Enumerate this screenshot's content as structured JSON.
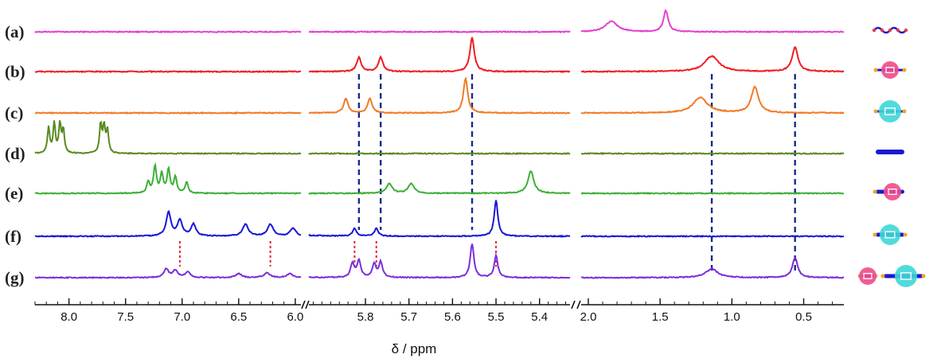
{
  "chart_data": {
    "type": "line",
    "title": "",
    "xlabel": "δ / ppm",
    "ylabel": "",
    "x_reversed": true,
    "grid": false,
    "axis_segments": [
      {
        "range": [
          8.3,
          5.95
        ],
        "ticks": [
          "8.0",
          "7.5",
          "7.0",
          "6.5",
          "6.0"
        ],
        "tick_values": [
          8.0,
          7.5,
          7.0,
          6.5,
          6.0
        ]
      },
      {
        "range": [
          5.93,
          5.33
        ],
        "ticks": [
          "5.8",
          "5.7",
          "5.6",
          "5.5",
          "5.4"
        ],
        "tick_values": [
          5.8,
          5.7,
          5.6,
          5.5,
          5.4
        ]
      },
      {
        "range": [
          2.05,
          0.22
        ],
        "ticks": [
          "2.0",
          "1.5",
          "1.0",
          "0.5"
        ],
        "tick_values": [
          2.0,
          1.5,
          1.0,
          0.5
        ]
      }
    ],
    "series": [
      {
        "label": "(a)",
        "color": "#e43fd0",
        "peaks": [
          [
            1.84,
            0.4,
            0.05
          ],
          [
            1.46,
            0.8,
            0.02
          ]
        ]
      },
      {
        "label": "(b)",
        "color": "#ee1d23",
        "peaks": [
          [
            5.815,
            0.42,
            0.006
          ],
          [
            5.765,
            0.42,
            0.006
          ],
          [
            5.555,
            1.0,
            0.006
          ],
          [
            1.14,
            0.45,
            0.06
          ],
          [
            0.56,
            0.7,
            0.025
          ]
        ]
      },
      {
        "label": "(c)",
        "color": "#f27a24",
        "peaks": [
          [
            5.845,
            0.42,
            0.006
          ],
          [
            5.79,
            0.42,
            0.006
          ],
          [
            5.57,
            1.0,
            0.006
          ],
          [
            1.22,
            0.45,
            0.06
          ],
          [
            0.84,
            0.75,
            0.03
          ]
        ]
      },
      {
        "label": "(d)",
        "color": "#5a8a1f",
        "peaks": [
          [
            8.18,
            0.85,
            0.012
          ],
          [
            8.13,
            1.0,
            0.012
          ],
          [
            8.08,
            0.95,
            0.012
          ],
          [
            8.05,
            0.75,
            0.012
          ],
          [
            7.72,
            0.95,
            0.012
          ],
          [
            7.69,
            0.85,
            0.012
          ],
          [
            7.66,
            0.75,
            0.012
          ]
        ]
      },
      {
        "label": "(e)",
        "color": "#3cb035",
        "peaks": [
          [
            7.3,
            0.35,
            0.015
          ],
          [
            7.24,
            0.85,
            0.015
          ],
          [
            7.18,
            0.6,
            0.015
          ],
          [
            7.12,
            0.75,
            0.015
          ],
          [
            7.06,
            0.5,
            0.015
          ],
          [
            6.96,
            0.35,
            0.015
          ],
          [
            5.745,
            0.3,
            0.008
          ],
          [
            5.695,
            0.3,
            0.008
          ],
          [
            5.42,
            0.7,
            0.008
          ]
        ]
      },
      {
        "label": "(f)",
        "color": "#1717d9",
        "peaks": [
          [
            7.12,
            0.6,
            0.025
          ],
          [
            7.02,
            0.4,
            0.025
          ],
          [
            6.9,
            0.3,
            0.025
          ],
          [
            6.44,
            0.3,
            0.03
          ],
          [
            6.22,
            0.3,
            0.03
          ],
          [
            6.02,
            0.2,
            0.03
          ],
          [
            5.825,
            0.2,
            0.005
          ],
          [
            5.775,
            0.2,
            0.005
          ],
          [
            5.5,
            0.9,
            0.005
          ]
        ]
      },
      {
        "label": "(g)",
        "color": "#7a2fd8",
        "peaks": [
          [
            7.14,
            0.22,
            0.025
          ],
          [
            7.06,
            0.18,
            0.025
          ],
          [
            6.95,
            0.15,
            0.025
          ],
          [
            6.5,
            0.1,
            0.03
          ],
          [
            6.25,
            0.12,
            0.03
          ],
          [
            6.05,
            0.1,
            0.03
          ],
          [
            5.83,
            0.35,
            0.005
          ],
          [
            5.815,
            0.42,
            0.005
          ],
          [
            5.78,
            0.33,
            0.005
          ],
          [
            5.765,
            0.38,
            0.005
          ],
          [
            5.555,
            0.85,
            0.005
          ],
          [
            5.5,
            0.55,
            0.005
          ],
          [
            1.14,
            0.22,
            0.05
          ],
          [
            0.56,
            0.5,
            0.022
          ]
        ]
      }
    ],
    "guide_lines": [
      {
        "color": "#1a2a8a",
        "style": "dashed",
        "x": 5.815,
        "from": "(b)",
        "to": "(f)"
      },
      {
        "color": "#1a2a8a",
        "style": "dashed",
        "x": 5.765,
        "from": "(b)",
        "to": "(f)"
      },
      {
        "color": "#1a2a8a",
        "style": "dashed",
        "x": 5.555,
        "from": "(b)",
        "to": "(f)"
      },
      {
        "color": "#1a2a8a",
        "style": "dashed",
        "x": 1.14,
        "from": "(b)",
        "to": "(g)"
      },
      {
        "color": "#1a2a8a",
        "style": "dashed",
        "x": 0.56,
        "from": "(b)",
        "to": "(g)"
      },
      {
        "color": "#e8203a",
        "style": "dashed",
        "x": 7.02,
        "from": "(f)",
        "to": "(g)"
      },
      {
        "color": "#e8203a",
        "style": "dashed",
        "x": 6.22,
        "from": "(f)",
        "to": "(g)"
      },
      {
        "color": "#e8203a",
        "style": "dashed",
        "x": 5.825,
        "from": "(f)",
        "to": "(g)"
      },
      {
        "color": "#e8203a",
        "style": "dashed",
        "x": 5.775,
        "from": "(f)",
        "to": "(g)"
      },
      {
        "color": "#e8203a",
        "style": "dashed",
        "x": 5.5,
        "from": "(f)",
        "to": "(g)"
      }
    ],
    "cartoons": [
      {
        "row": "(a)",
        "icon": "wavy-guest-icon"
      },
      {
        "row": "(b)",
        "icon": "pink-ring-on-axle-icon"
      },
      {
        "row": "(c)",
        "icon": "cyan-ring-on-axle-icon"
      },
      {
        "row": "(d)",
        "icon": "blue-rod-icon"
      },
      {
        "row": "(e)",
        "icon": "pink-ring-on-rod-icon"
      },
      {
        "row": "(f)",
        "icon": "cyan-ring-on-rod-icon"
      },
      {
        "row": "(g)",
        "icon": "mixed-rotaxane-icon"
      }
    ],
    "colors": {
      "pink_ring": "#f04a8a",
      "cyan_ring": "#3fd6d6",
      "axle": "#1a1ad0",
      "stopper": "#f2a22a"
    }
  }
}
